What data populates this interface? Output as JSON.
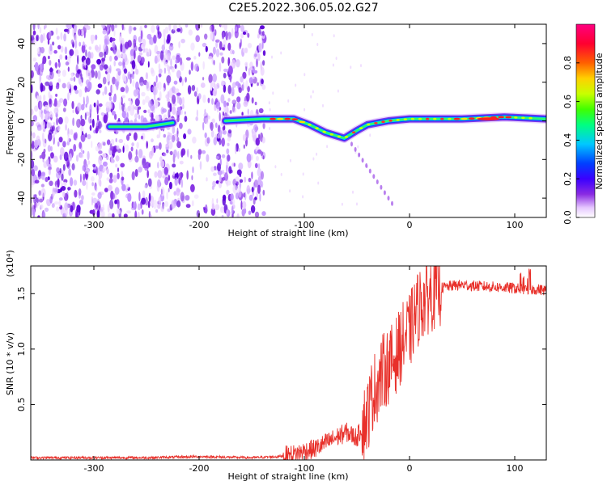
{
  "title": "C2E5.2022.306.05.02.G27",
  "chart_data": [
    {
      "type": "heatmap",
      "title": "C2E5.2022.306.05.02.G27",
      "xlabel": "Height of straight line (km)",
      "ylabel": "Frequency (Hz)",
      "xlim": [
        -360,
        130
      ],
      "ylim": [
        -50,
        50
      ],
      "xticks": [
        -300,
        -200,
        -100,
        0,
        100
      ],
      "yticks": [
        -40,
        -20,
        0,
        20,
        40
      ],
      "colorbar": {
        "label": "Normalized spectral amplitude",
        "range": [
          0,
          1
        ],
        "ticks": [
          "0.0",
          "0.2",
          "0.4",
          "0.6",
          "0.8"
        ],
        "tick_values": [
          0,
          0.2,
          0.4,
          0.6,
          0.8
        ],
        "colors": [
          "#ffffff",
          "#e6c8ff",
          "#8a2be2",
          "#3a00ff",
          "#0040ff",
          "#00c8ff",
          "#00ff80",
          "#40ff00",
          "#c8ff00",
          "#ffd000",
          "#ff6000",
          "#ff0030",
          "#ff0080"
        ]
      },
      "ridge_track": [
        {
          "x": -285,
          "y": -3
        },
        {
          "x": -250,
          "y": -3
        },
        {
          "x": -225,
          "y": -1
        },
        {
          "x": -175,
          "y": 0
        },
        {
          "x": -140,
          "y": 1
        },
        {
          "x": -110,
          "y": 1
        },
        {
          "x": -95,
          "y": -2
        },
        {
          "x": -80,
          "y": -6
        },
        {
          "x": -62,
          "y": -9
        },
        {
          "x": -50,
          "y": -5
        },
        {
          "x": -40,
          "y": -2
        },
        {
          "x": -20,
          "y": 0
        },
        {
          "x": 0,
          "y": 1
        },
        {
          "x": 50,
          "y": 1
        },
        {
          "x": 90,
          "y": 2
        },
        {
          "x": 130,
          "y": 1
        }
      ],
      "noise_region": {
        "x_from": -360,
        "x_to": -138
      },
      "grid": false
    },
    {
      "type": "line",
      "title": "",
      "xlabel": "Height of straight line (km)",
      "ylabel": "SNR (10 * v/v)",
      "exponent_label": "(x10⁴)",
      "xlim": [
        -360,
        130
      ],
      "ylim": [
        0,
        1.75
      ],
      "xticks": [
        -300,
        -200,
        -100,
        0,
        100
      ],
      "yticks": [
        0.5,
        1.0,
        1.5
      ],
      "ytick_labels": [
        "0.5",
        "1.0",
        "1.5"
      ],
      "color": "#e8302a",
      "series": [
        {
          "x": [
            -360,
            -300,
            -250,
            -200,
            -150,
            -125,
            -110,
            -100,
            -90,
            -80,
            -70,
            -60,
            -50,
            -45,
            -40,
            -35,
            -30,
            -25,
            -20,
            -15,
            -10,
            -5,
            0,
            5,
            10,
            20,
            30,
            40,
            50,
            60,
            80,
            100,
            110,
            120,
            130
          ],
          "y": [
            0.02,
            0.02,
            0.02,
            0.03,
            0.02,
            0.03,
            0.05,
            0.08,
            0.1,
            0.15,
            0.2,
            0.25,
            0.2,
            0.3,
            0.4,
            0.6,
            0.7,
            0.8,
            0.85,
            0.9,
            1.0,
            1.1,
            1.15,
            1.3,
            1.4,
            1.5,
            1.55,
            1.57,
            1.58,
            1.57,
            1.56,
            1.55,
            1.53,
            1.54,
            1.53
          ]
        }
      ],
      "grid": false
    }
  ]
}
